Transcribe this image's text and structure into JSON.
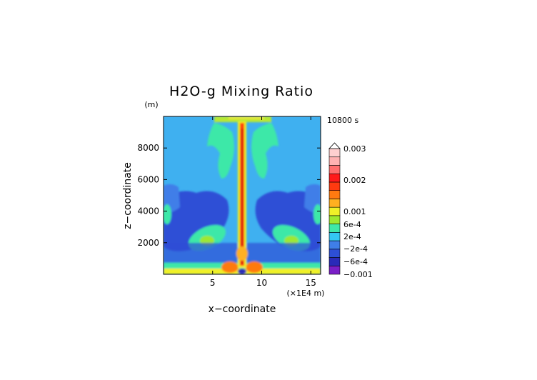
{
  "chart_data": {
    "type": "heatmap",
    "title": "H2O-g Mixing Ratio",
    "time_label": "10800 s",
    "xlabel": "x−coordinate",
    "x_unit": "(×1E4 m)",
    "ylabel": "z−coordinate",
    "y_unit": "(m)",
    "xlim": [
      0,
      16
    ],
    "ylim": [
      0,
      10000
    ],
    "x_ticks": [
      5,
      10,
      15
    ],
    "y_ticks": [
      2000,
      4000,
      6000,
      8000
    ],
    "colorbar": {
      "ticks": [
        {
          "value": 0.003,
          "label": "0.003"
        },
        {
          "value": 0.002,
          "label": "0.002"
        },
        {
          "value": 0.001,
          "label": "0.001"
        },
        {
          "value": 0.0006,
          "label": "6e-4"
        },
        {
          "value": 0.0002,
          "label": "2e-4"
        },
        {
          "value": -0.0002,
          "label": "−2e-4"
        },
        {
          "value": -0.0006,
          "label": "−6e-4"
        },
        {
          "value": -0.001,
          "label": "−0.001"
        }
      ],
      "colors": [
        "#7a1fc7",
        "#2a2ab8",
        "#2d4fd6",
        "#3f7ee8",
        "#34c7f2",
        "#3ee8a8",
        "#9ee830",
        "#f0f028",
        "#ffb020",
        "#ff7a10",
        "#ff3a10",
        "#ff1a1a",
        "#ff6e6e",
        "#ffb2b2",
        "#ffd0d0"
      ]
    },
    "colors": {
      "background_field": "#3fb0f0",
      "moist_band": "#3ee8a8",
      "dry_band": "#2d4fd6",
      "core": "#ff3a10"
    }
  }
}
